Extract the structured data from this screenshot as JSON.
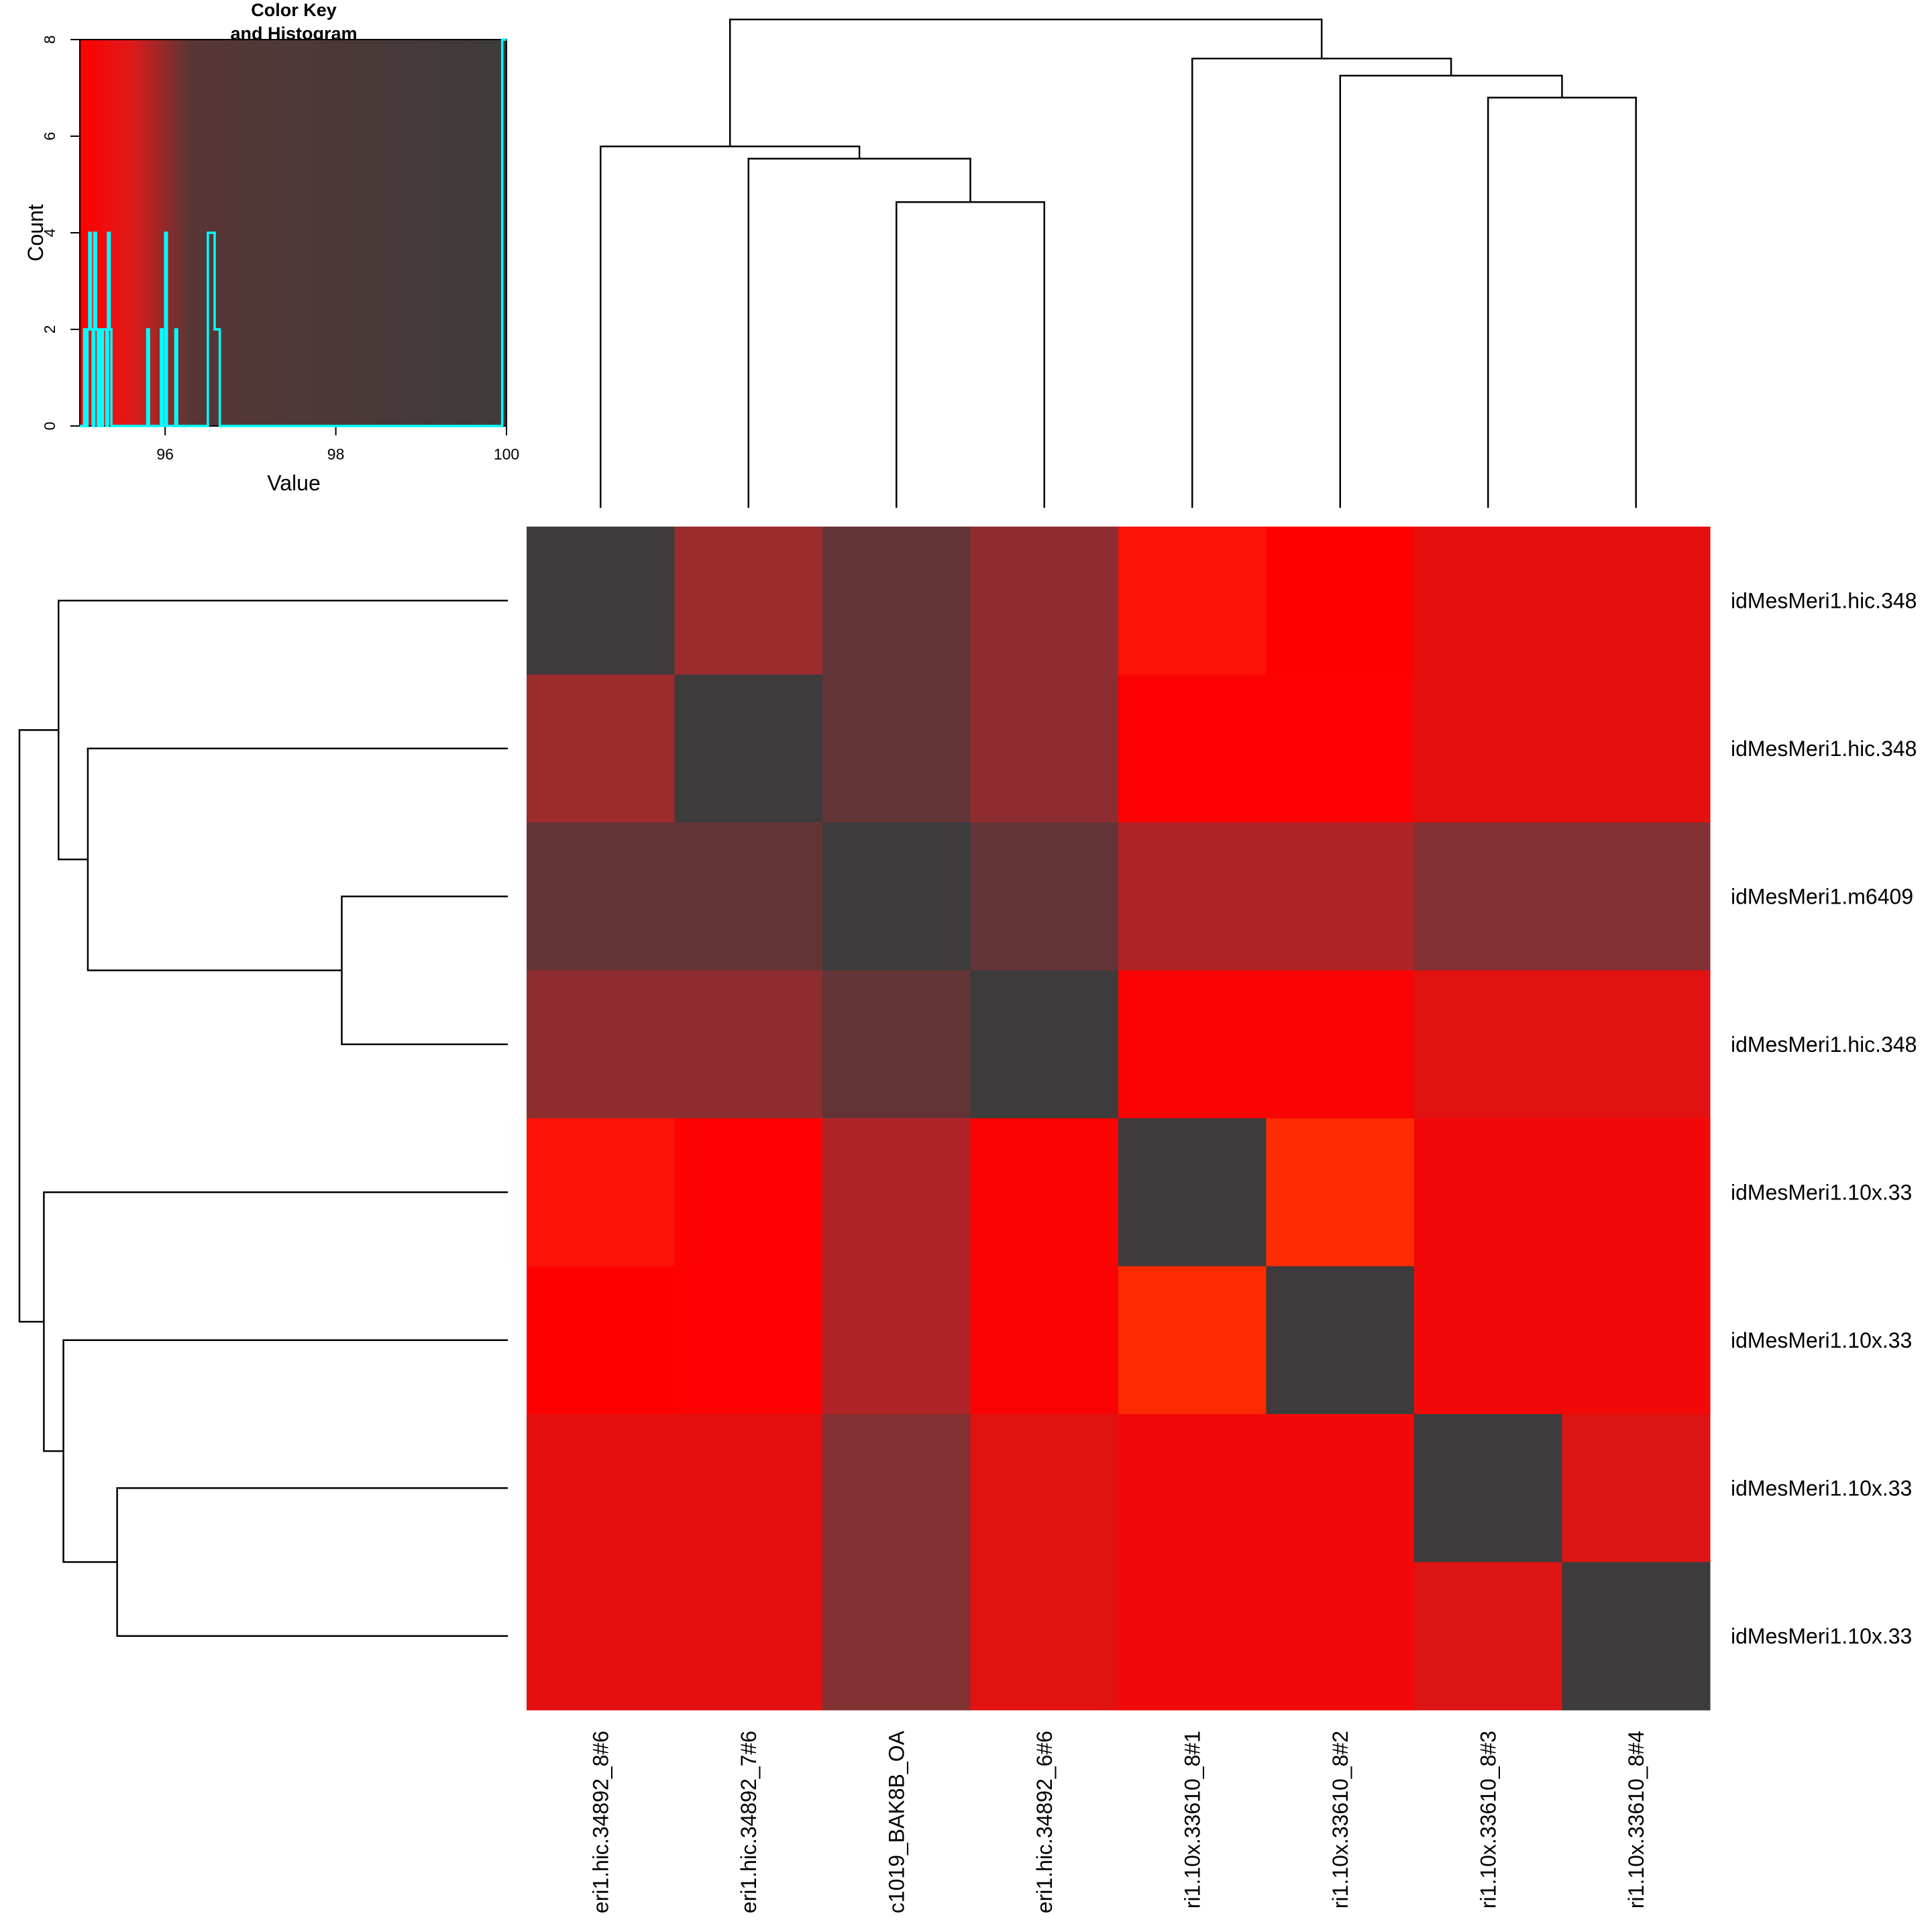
{
  "chart_data": [
    {
      "type": "heatmap",
      "row_labels": [
        "idMesMeri1.hic.348",
        "idMesMeri1.hic.348",
        "idMesMeri1.m6409",
        "idMesMeri1.hic.348",
        "idMesMeri1.10x.33",
        "idMesMeri1.10x.33",
        "idMesMeri1.10x.33",
        "idMesMeri1.10x.33"
      ],
      "col_labels": [
        "eri1.hic.34892_8#6",
        "eri1.hic.34892_7#6",
        "c1019_BAK8B_OA",
        "eri1.hic.34892_6#6",
        "ri1.10x.33610_8#1",
        "ri1.10x.33610_8#2",
        "ri1.10x.33610_8#3",
        "ri1.10x.33610_8#4"
      ],
      "cell_colors": [
        [
          "#3d3b3b",
          "#9c2b2c",
          "#633436",
          "#8e2d2f",
          "#fc1206",
          "#fe0000",
          "#e41010",
          "#e41010"
        ],
        [
          "#9c2b2c",
          "#3d3b3b",
          "#633436",
          "#8e2d2f",
          "#fd0202",
          "#fd0202",
          "#e41010",
          "#e41010"
        ],
        [
          "#633436",
          "#633436",
          "#3d3b3b",
          "#633436",
          "#b02428",
          "#b02428",
          "#833032",
          "#833032"
        ],
        [
          "#8e2d2f",
          "#8e2d2f",
          "#633436",
          "#3d3b3b",
          "#f90304",
          "#f90304",
          "#e21212",
          "#e21212"
        ],
        [
          "#fc1206",
          "#fd0202",
          "#b02428",
          "#f90304",
          "#3d3b3b",
          "#fe2b00",
          "#f30808",
          "#f30808"
        ],
        [
          "#fe0000",
          "#fd0202",
          "#b02428",
          "#f90304",
          "#fe2b00",
          "#3d3b3b",
          "#f30808",
          "#f30808"
        ],
        [
          "#e41010",
          "#e41010",
          "#833032",
          "#e21212",
          "#f30808",
          "#f30808",
          "#3d3b3b",
          "#dd1414"
        ],
        [
          "#e41010",
          "#e41010",
          "#833032",
          "#e21212",
          "#f30808",
          "#f30808",
          "#dd1414",
          "#3d3b3b"
        ]
      ],
      "row_dendrogram": [
        [
          3,
          4,
          0.34
        ],
        [
          2,
          -1,
          0.86
        ],
        [
          1,
          -2,
          0.92
        ],
        [
          7,
          8,
          0.8
        ],
        [
          6,
          -4,
          0.91
        ],
        [
          5,
          -5,
          0.95
        ],
        [
          -3,
          -6,
          1.0
        ]
      ],
      "col_dendrogram": [
        [
          3,
          4,
          0.626
        ],
        [
          2,
          -1,
          0.715
        ],
        [
          1,
          -2,
          0.74
        ],
        [
          7,
          8,
          0.84
        ],
        [
          6,
          -4,
          0.885
        ],
        [
          5,
          -5,
          0.92
        ],
        [
          -3,
          -6,
          1.0
        ]
      ]
    },
    {
      "type": "histogram",
      "title": "Color Key\nand Histogram",
      "title_lines": [
        "Color Key",
        "and Histogram"
      ],
      "xlabel": "Value",
      "ylabel": "Count",
      "xlim": [
        95,
        100
      ],
      "ylim": [
        0,
        8
      ],
      "xticks": [
        96,
        98,
        100
      ],
      "yticks": [
        0,
        2,
        4,
        6,
        8
      ],
      "color_scale": [
        "#ff0000",
        "#583636",
        "#3d3b3b"
      ],
      "line_color": "#00ffff",
      "bins": [
        [
          95.0,
          95.05,
          0
        ],
        [
          95.05,
          95.07,
          2
        ],
        [
          95.07,
          95.09,
          0
        ],
        [
          95.09,
          95.11,
          2
        ],
        [
          95.11,
          95.13,
          4
        ],
        [
          95.13,
          95.15,
          2
        ],
        [
          95.15,
          95.17,
          0
        ],
        [
          95.17,
          95.19,
          4
        ],
        [
          95.19,
          95.21,
          2
        ],
        [
          95.21,
          95.23,
          0
        ],
        [
          95.23,
          95.25,
          2
        ],
        [
          95.25,
          95.27,
          0
        ],
        [
          95.27,
          95.29,
          2
        ],
        [
          95.29,
          95.31,
          2
        ],
        [
          95.31,
          95.33,
          0
        ],
        [
          95.33,
          95.35,
          4
        ],
        [
          95.35,
          95.37,
          2
        ],
        [
          95.37,
          95.79,
          0
        ],
        [
          95.79,
          95.81,
          2
        ],
        [
          95.81,
          95.95,
          0
        ],
        [
          95.95,
          95.97,
          2
        ],
        [
          95.97,
          96.0,
          0
        ],
        [
          96.0,
          96.02,
          4
        ],
        [
          96.02,
          96.12,
          0
        ],
        [
          96.12,
          96.14,
          2
        ],
        [
          96.14,
          96.5,
          0
        ],
        [
          96.5,
          96.58,
          4
        ],
        [
          96.58,
          96.64,
          2
        ],
        [
          96.64,
          99.95,
          0
        ],
        [
          99.95,
          100.0,
          8
        ]
      ]
    }
  ]
}
